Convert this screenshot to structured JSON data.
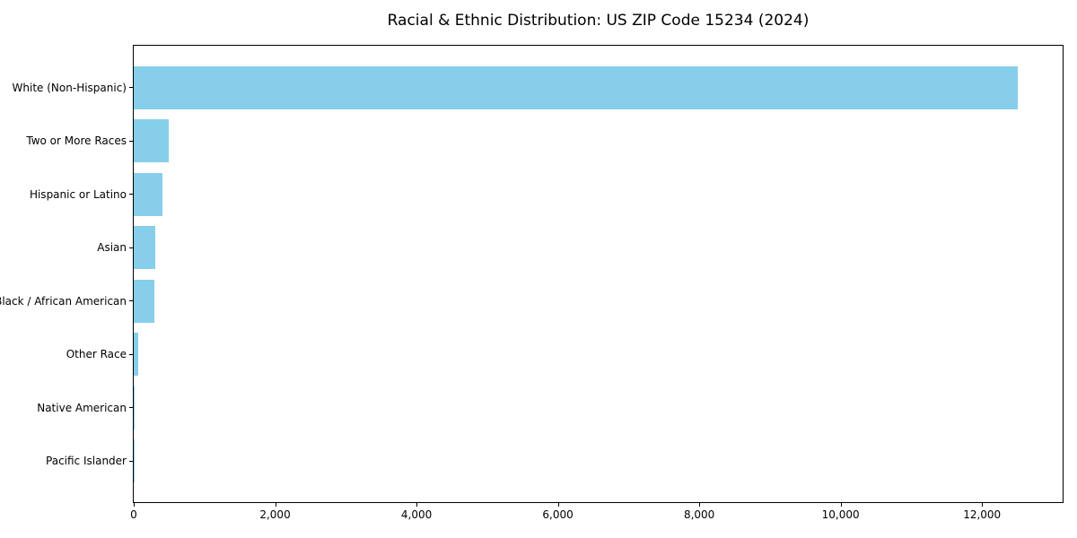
{
  "chart_data": {
    "type": "bar",
    "orientation": "horizontal",
    "title": "Racial & Ethnic Distribution: US ZIP Code 15234 (2024)",
    "categories": [
      "White (Non-Hispanic)",
      "Two or More Races",
      "Hispanic or Latino",
      "Asian",
      "Black / African American",
      "Other Race",
      "Native American",
      "Pacific Islander"
    ],
    "values": [
      12500,
      500,
      400,
      300,
      290,
      60,
      10,
      4
    ],
    "xlabel": "",
    "ylabel": "",
    "xlim": [
      0,
      13140
    ],
    "x_ticks": [
      0,
      2000,
      4000,
      6000,
      8000,
      10000,
      12000
    ],
    "x_tick_labels": [
      "0",
      "2,000",
      "4,000",
      "6,000",
      "8,000",
      "10,000",
      "12,000"
    ],
    "bar_color": "#87CEEB",
    "background_color": "#ffffff",
    "text_color": "#000000",
    "grid": false,
    "legend": "none"
  }
}
